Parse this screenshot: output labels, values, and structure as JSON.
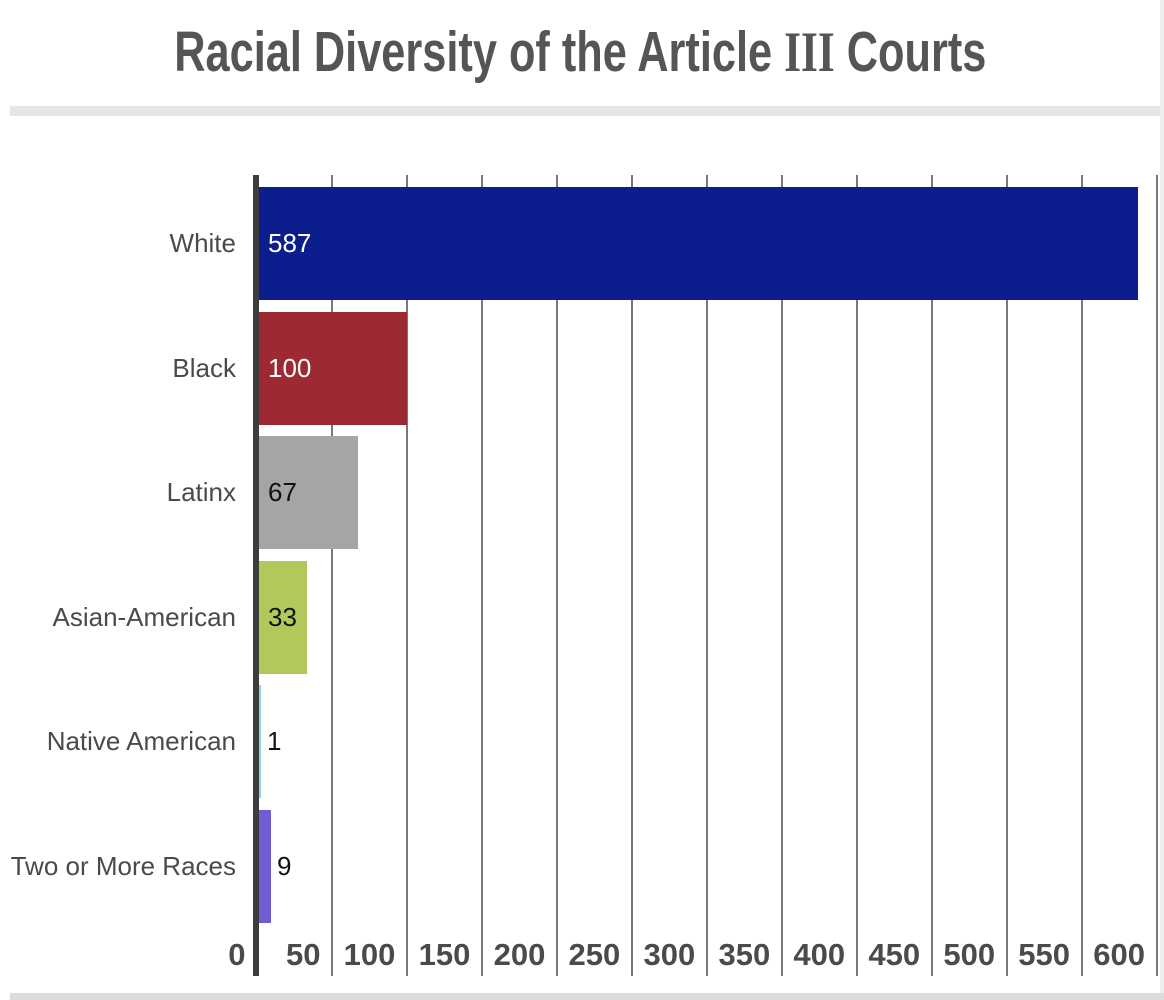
{
  "page": {
    "title": "Racial Diversity of the Article III Courts"
  },
  "chart_data": {
    "type": "bar",
    "orientation": "horizontal",
    "title": "Racial Diversity of the Article III Courts",
    "categories": [
      "White",
      "Black",
      "Latinx",
      "Asian-American",
      "Native American",
      "Two or More Races"
    ],
    "values": [
      587,
      100,
      67,
      33,
      1,
      9
    ],
    "value_labels": [
      "587",
      "100",
      "67",
      "33",
      "1",
      "9"
    ],
    "bar_colors": [
      "#0c1d8e",
      "#9d2932",
      "#a5a5a5",
      "#b2c85a",
      "#8ed1ea",
      "#6f5dd8"
    ],
    "value_label_colors": [
      "#ffffff",
      "#ffffff",
      "#111111",
      "#111111",
      "#111111",
      "#111111"
    ],
    "value_label_inside": [
      true,
      true,
      true,
      true,
      false,
      false
    ],
    "xlabel": "",
    "ylabel": "",
    "xlim": [
      0,
      600
    ],
    "x_ticks": [
      0,
      50,
      100,
      150,
      200,
      250,
      300,
      350,
      400,
      450,
      500,
      550,
      600
    ],
    "grid": true,
    "legend_position": "none"
  },
  "style": {
    "title_color": "#555555",
    "divider_band_top_color": "#e6e6e6",
    "divider_band_bottom_color": "#dcdcdc",
    "grid_color": "#787878",
    "axis_color": "#3d3d3d",
    "tick_label_color": "#4a4a4a",
    "category_label_color": "#4a4a4a",
    "right_strip_color": "#ededed"
  }
}
